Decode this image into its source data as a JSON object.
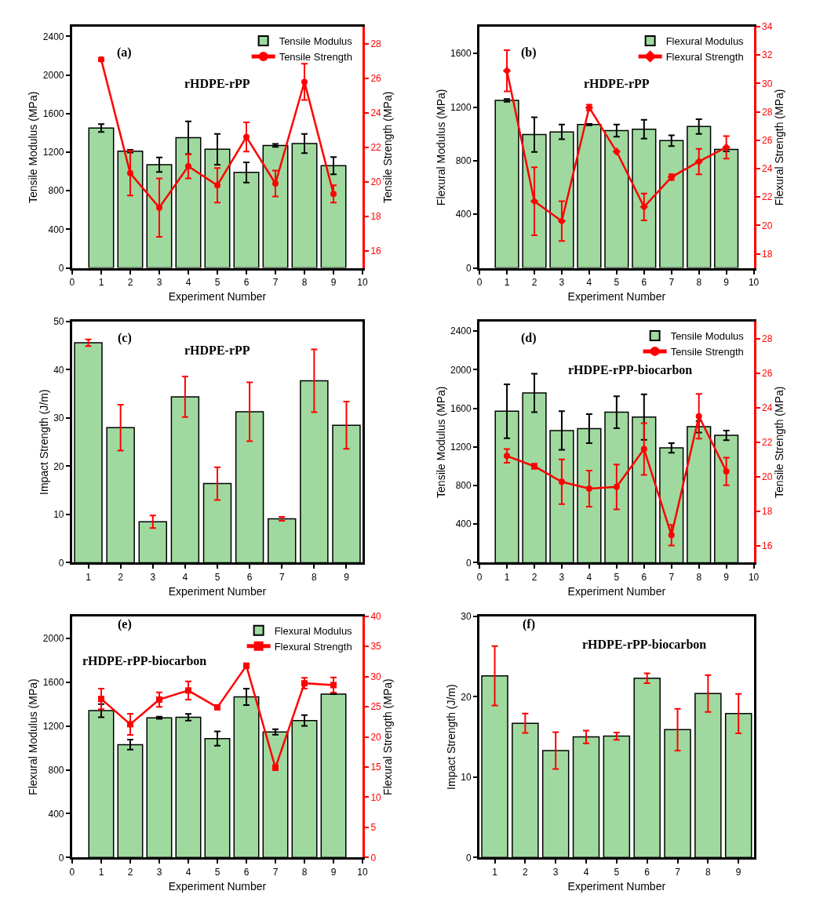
{
  "chart_data": [
    {
      "type": "bar",
      "xlabel": "Experiment Number",
      "ylabel": "Tensile Modulus (MPa)",
      "y2label": "Tensile Strength (MPa)",
      "annotations": [
        "(a)",
        "rHDPE-rPP"
      ],
      "x": [
        1,
        2,
        3,
        4,
        5,
        6,
        7,
        8,
        9
      ],
      "xlim": [
        0,
        10
      ],
      "xticks": [
        0,
        1,
        2,
        3,
        4,
        5,
        6,
        7,
        8,
        9,
        10
      ],
      "ylim": [
        0,
        2500
      ],
      "yticks": [
        0,
        400,
        800,
        1200,
        1600,
        2000,
        2400
      ],
      "y2lim": [
        15,
        29
      ],
      "y2ticks": [
        16,
        18,
        20,
        22,
        24,
        26,
        28
      ],
      "legend": "top right",
      "marker": "circle",
      "series": [
        {
          "name": "Tensile Modulus",
          "color": "#9fd99f",
          "values": [
            1450,
            1210,
            1070,
            1350,
            1230,
            990,
            1270,
            1290,
            1060
          ],
          "errors": [
            40,
            15,
            75,
            170,
            160,
            105,
            15,
            100,
            90
          ]
        },
        {
          "type": "line",
          "axis": "y2",
          "name": "Tensile Strength",
          "color": "#ff0000",
          "values": [
            27.1,
            20.5,
            18.5,
            20.9,
            19.8,
            22.6,
            19.9,
            25.8,
            19.3
          ],
          "errors": [
            0.1,
            1.3,
            1.7,
            0.7,
            1.0,
            0.85,
            0.75,
            1.05,
            0.5
          ]
        }
      ]
    },
    {
      "type": "bar",
      "xlabel": "Experiment Number",
      "ylabel": "Flexural Modulus (MPa)",
      "y2label": "Flexural Strength (MPa)",
      "annotations": [
        "(b)",
        "rHDPE-rPP"
      ],
      "x": [
        1,
        2,
        3,
        4,
        5,
        6,
        7,
        8,
        9
      ],
      "xlim": [
        0,
        10
      ],
      "xticks": [
        0,
        1,
        2,
        3,
        4,
        5,
        6,
        7,
        8,
        9,
        10
      ],
      "ylim": [
        0,
        1800
      ],
      "yticks": [
        0,
        400,
        800,
        1200,
        1600
      ],
      "y2lim": [
        17,
        34
      ],
      "y2ticks": [
        18,
        20,
        22,
        24,
        26,
        28,
        30,
        32,
        34
      ],
      "legend": "top right",
      "marker": "diamond",
      "series": [
        {
          "name": "Flexural Modulus",
          "color": "#9fd99f",
          "values": [
            1250,
            995,
            1015,
            1070,
            1025,
            1035,
            950,
            1055,
            885
          ],
          "errors": [
            10,
            130,
            55,
            5,
            45,
            70,
            40,
            55,
            15
          ]
        },
        {
          "type": "line",
          "axis": "y2",
          "name": "Flexural Strength",
          "color": "#ff0000",
          "values": [
            30.9,
            21.7,
            20.3,
            28.3,
            25.2,
            21.3,
            23.4,
            24.5,
            25.5
          ],
          "errors": [
            1.45,
            2.4,
            1.4,
            0.2,
            null,
            0.95,
            0.2,
            0.9,
            0.8
          ]
        }
      ]
    },
    {
      "type": "bar",
      "xlabel": "Experiment Number",
      "ylabel": "Impact Strength (J/m)",
      "annotations": [
        "(c)",
        "rHDPE-rPP"
      ],
      "categories": [
        "1",
        "2",
        "3",
        "4",
        "5",
        "6",
        "7",
        "8",
        "9"
      ],
      "ylim": [
        0,
        50
      ],
      "yticks": [
        0,
        10,
        20,
        30,
        40,
        50
      ],
      "series": [
        {
          "color": "#9fd99f",
          "values": [
            45.6,
            28.0,
            8.5,
            34.4,
            16.4,
            31.3,
            9.1,
            37.7,
            28.5
          ],
          "errors": [
            0.7,
            4.75,
            1.3,
            4.2,
            3.4,
            6.1,
            0.4,
            6.5,
            4.9
          ]
        }
      ]
    },
    {
      "type": "bar",
      "xlabel": "Experiment Number",
      "ylabel": "Tensile Modulus (MPa)",
      "y2label": "Tensile Strength (MPa)",
      "annotations": [
        "(d)",
        "rHDPE-rPP-biocarbon"
      ],
      "x": [
        1,
        2,
        3,
        4,
        5,
        6,
        7,
        8,
        9
      ],
      "xlim": [
        0,
        10
      ],
      "xticks": [
        0,
        1,
        2,
        3,
        4,
        5,
        6,
        7,
        8,
        9,
        10
      ],
      "ylim": [
        0,
        2500
      ],
      "yticks": [
        0,
        400,
        800,
        1200,
        1600,
        2000,
        2400
      ],
      "y2lim": [
        15,
        29
      ],
      "y2ticks": [
        16,
        18,
        20,
        22,
        24,
        26,
        28
      ],
      "legend": "top right",
      "marker": "circle",
      "series": [
        {
          "name": "Tensile Modulus",
          "color": "#9fd99f",
          "values": [
            1570,
            1760,
            1370,
            1390,
            1560,
            1510,
            1190,
            1410,
            1320
          ],
          "errors": [
            280,
            200,
            200,
            150,
            165,
            235,
            50,
            60,
            50
          ]
        },
        {
          "type": "line",
          "axis": "y2",
          "name": "Tensile Strength",
          "color": "#ff0000",
          "values": [
            21.2,
            20.6,
            19.7,
            19.3,
            19.4,
            21.6,
            16.6,
            23.5,
            20.3
          ],
          "errors": [
            0.4,
            0.15,
            1.3,
            1.05,
            1.3,
            1.5,
            0.6,
            1.3,
            0.8
          ]
        }
      ]
    },
    {
      "type": "bar",
      "xlabel": "Experiment Number",
      "ylabel": "Flexural Modulus (MPa)",
      "y2label": "Flexural Strength (MPa)",
      "annotations": [
        "(e)",
        "rHDPE-rPP-biocarbon"
      ],
      "x": [
        1,
        2,
        3,
        4,
        5,
        6,
        7,
        8,
        9
      ],
      "xlim": [
        0,
        10
      ],
      "xticks": [
        0,
        1,
        2,
        3,
        4,
        5,
        6,
        7,
        8,
        9,
        10
      ],
      "ylim": [
        0,
        2200
      ],
      "yticks": [
        0,
        400,
        800,
        1200,
        1600,
        2000
      ],
      "y2lim": [
        0,
        40
      ],
      "y2ticks": [
        0,
        5,
        10,
        15,
        20,
        25,
        30,
        35,
        40
      ],
      "legend": "top right",
      "marker": "square",
      "series": [
        {
          "name": "Flexural Modulus",
          "color": "#9fd99f",
          "values": [
            1340,
            1030,
            1275,
            1280,
            1085,
            1465,
            1145,
            1250,
            1490
          ],
          "errors": [
            60,
            45,
            10,
            30,
            65,
            75,
            25,
            50,
            null
          ]
        },
        {
          "type": "line",
          "axis": "y2",
          "name": "Flexural Strength",
          "color": "#ff0000",
          "values": [
            26.3,
            22.1,
            26.2,
            27.7,
            24.9,
            31.8,
            14.9,
            28.9,
            28.6
          ],
          "errors": [
            1.7,
            1.75,
            1.2,
            1.5,
            null,
            0.4,
            0.4,
            0.9,
            1.25
          ]
        }
      ]
    },
    {
      "type": "bar",
      "xlabel": "Experiment Number",
      "ylabel": "Impact Strength (J/m)",
      "annotations": [
        "(f)",
        "rHDPE-rPP-biocarbon"
      ],
      "categories": [
        "1",
        "2",
        "3",
        "4",
        "5",
        "6",
        "7",
        "8",
        "9"
      ],
      "ylim": [
        0,
        30
      ],
      "yticks": [
        0,
        10,
        20,
        30
      ],
      "series": [
        {
          "color": "#9fd99f",
          "values": [
            22.6,
            16.7,
            13.3,
            15.0,
            15.1,
            22.3,
            15.9,
            20.4,
            17.9
          ],
          "errors": [
            3.7,
            1.2,
            2.3,
            0.8,
            0.45,
            0.6,
            2.6,
            2.3,
            2.45
          ]
        }
      ]
    }
  ]
}
